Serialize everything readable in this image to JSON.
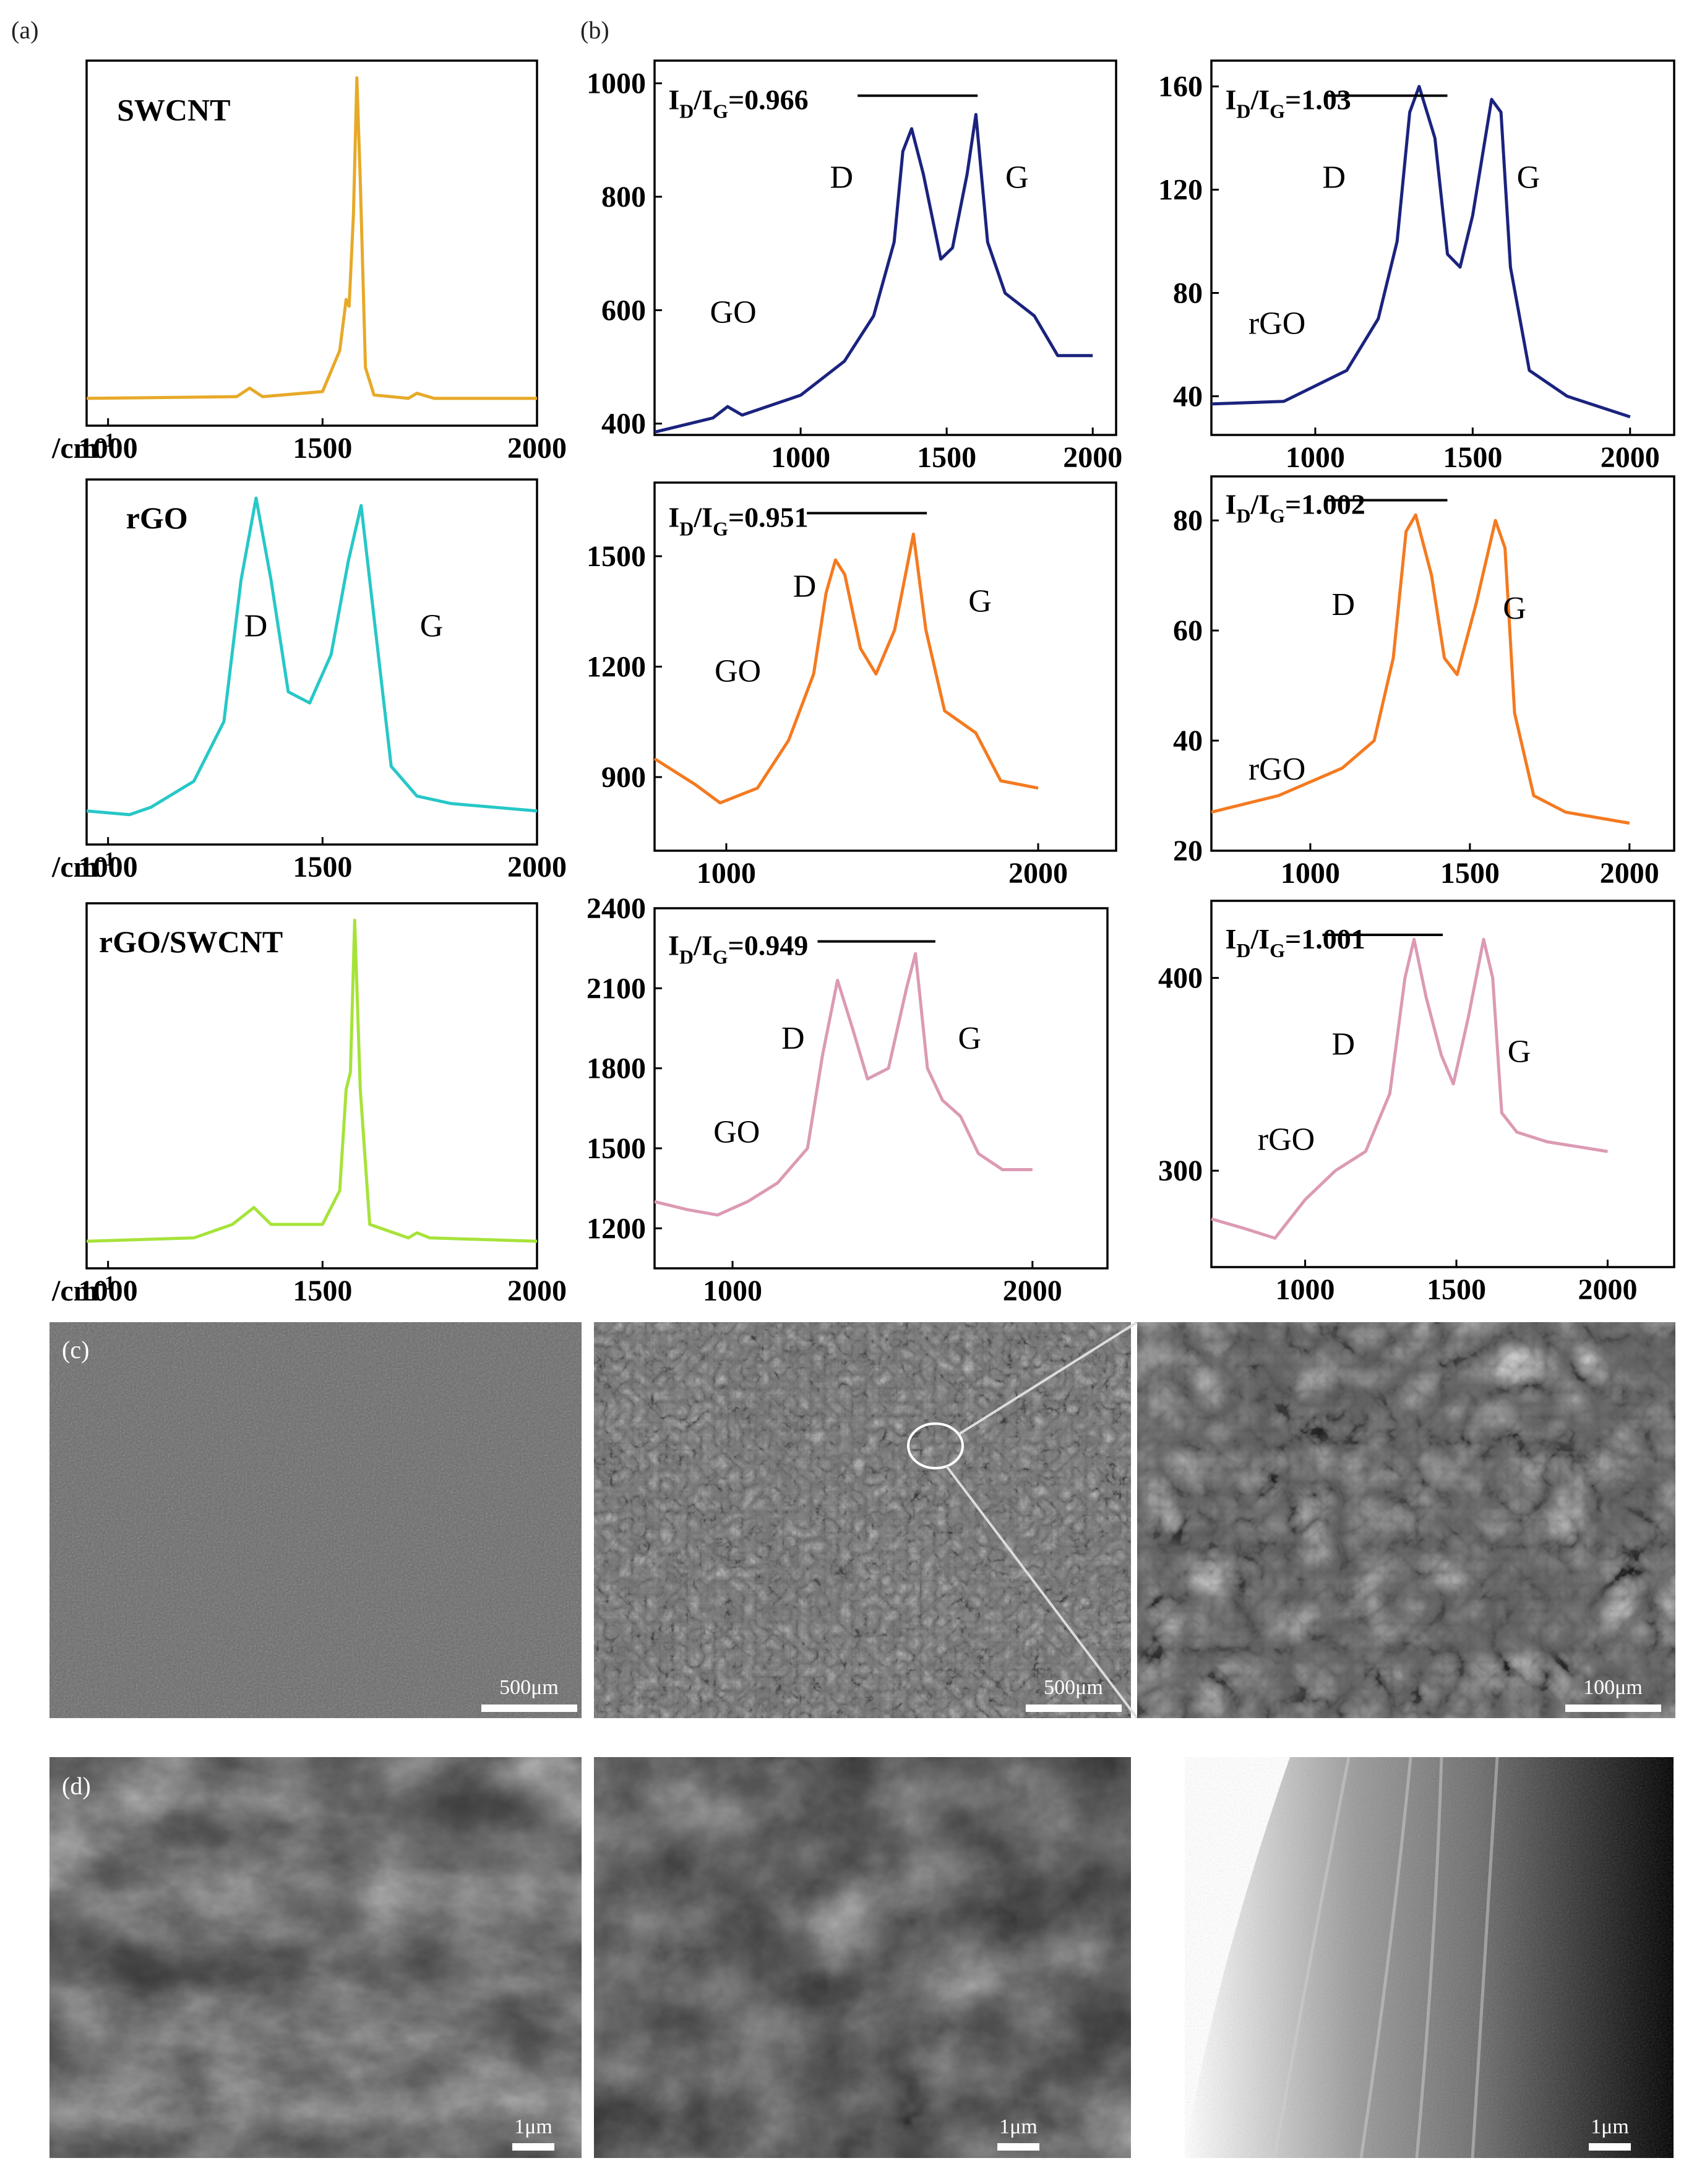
{
  "panel_labels": {
    "a": "(a)",
    "b": "(b)",
    "c": "(c)",
    "d": "(d)"
  },
  "axis_unit_label": "/cm",
  "axis_unit_sup": "-1",
  "colors": {
    "swcnt": "#e7a928",
    "rgo": "#27c7c7",
    "composite": "#a6e33a",
    "navy": "#1b237e",
    "orange": "#f47a20",
    "pink": "#dc9ab4"
  },
  "chart_data": [
    {
      "id": "a1",
      "type": "line",
      "title": "SWCNT",
      "xlim": [
        950,
        2000
      ],
      "x_ticks": [
        1000,
        1500,
        2000
      ],
      "y_ticks": [],
      "series": [
        {
          "color": "#e7a928",
          "points": [
            [
              950,
              0.06
            ],
            [
              1300,
              0.065
            ],
            [
              1330,
              0.09
            ],
            [
              1360,
              0.065
            ],
            [
              1500,
              0.08
            ],
            [
              1540,
              0.2
            ],
            [
              1555,
              0.35
            ],
            [
              1562,
              0.33
            ],
            [
              1572,
              0.6
            ],
            [
              1580,
              1.0
            ],
            [
              1588,
              0.7
            ],
            [
              1600,
              0.15
            ],
            [
              1620,
              0.07
            ],
            [
              1700,
              0.06
            ],
            [
              1720,
              0.075
            ],
            [
              1760,
              0.06
            ],
            [
              2000,
              0.06
            ]
          ]
        }
      ],
      "annotations": []
    },
    {
      "id": "b1",
      "type": "line",
      "title": "I_D/I_G=0.966",
      "xlim": [
        500,
        2080
      ],
      "ylim": [
        380,
        1040
      ],
      "x_ticks": [
        1000,
        1500,
        2000
      ],
      "y_ticks": [
        400,
        600,
        800,
        1000
      ],
      "series": [
        {
          "color": "#1b237e",
          "points": [
            [
              500,
              385
            ],
            [
              700,
              410
            ],
            [
              750,
              430
            ],
            [
              800,
              415
            ],
            [
              1000,
              450
            ],
            [
              1150,
              510
            ],
            [
              1250,
              590
            ],
            [
              1320,
              720
            ],
            [
              1350,
              880
            ],
            [
              1380,
              920
            ],
            [
              1420,
              840
            ],
            [
              1480,
              690
            ],
            [
              1520,
              710
            ],
            [
              1570,
              840
            ],
            [
              1600,
              945
            ],
            [
              1640,
              720
            ],
            [
              1700,
              630
            ],
            [
              1800,
              590
            ],
            [
              1880,
              520
            ],
            [
              2000,
              520
            ]
          ]
        }
      ],
      "annotations": [
        "D",
        "G",
        "GO"
      ]
    },
    {
      "id": "b2",
      "type": "line",
      "title": "I_D/I_G=1.03",
      "xlim": [
        670,
        2140
      ],
      "ylim": [
        25,
        170
      ],
      "x_ticks": [
        1000,
        1500,
        2000
      ],
      "y_ticks": [
        40,
        80,
        120,
        160
      ],
      "series": [
        {
          "color": "#1b237e",
          "points": [
            [
              670,
              37
            ],
            [
              900,
              38
            ],
            [
              1100,
              50
            ],
            [
              1200,
              70
            ],
            [
              1260,
              100
            ],
            [
              1300,
              150
            ],
            [
              1330,
              160
            ],
            [
              1380,
              140
            ],
            [
              1420,
              95
            ],
            [
              1460,
              90
            ],
            [
              1500,
              110
            ],
            [
              1560,
              155
            ],
            [
              1590,
              150
            ],
            [
              1620,
              90
            ],
            [
              1680,
              50
            ],
            [
              1800,
              40
            ],
            [
              2000,
              32
            ]
          ]
        }
      ],
      "annotations": [
        "D",
        "G",
        "rGO"
      ]
    },
    {
      "id": "a2",
      "type": "line",
      "title": "rGO",
      "xlim": [
        950,
        2000
      ],
      "x_ticks": [
        1000,
        1500,
        2000
      ],
      "y_ticks": [],
      "series": [
        {
          "color": "#27c7c7",
          "points": [
            [
              950,
              0.08
            ],
            [
              1050,
              0.07
            ],
            [
              1100,
              0.09
            ],
            [
              1200,
              0.16
            ],
            [
              1270,
              0.32
            ],
            [
              1310,
              0.7
            ],
            [
              1345,
              0.92
            ],
            [
              1380,
              0.7
            ],
            [
              1420,
              0.4
            ],
            [
              1470,
              0.37
            ],
            [
              1520,
              0.5
            ],
            [
              1560,
              0.75
            ],
            [
              1590,
              0.9
            ],
            [
              1620,
              0.6
            ],
            [
              1660,
              0.2
            ],
            [
              1720,
              0.12
            ],
            [
              1800,
              0.1
            ],
            [
              2000,
              0.08
            ]
          ]
        }
      ],
      "annotations": [
        "D",
        "G"
      ]
    },
    {
      "id": "b3",
      "type": "line",
      "title": "I_D/I_G=0.951",
      "xlim": [
        770,
        2250
      ],
      "ylim": [
        700,
        1700
      ],
      "x_ticks": [
        1000,
        2000
      ],
      "y_ticks": [
        900,
        1200,
        1500
      ],
      "series": [
        {
          "color": "#f47a20",
          "points": [
            [
              770,
              950
            ],
            [
              900,
              880
            ],
            [
              980,
              830
            ],
            [
              1100,
              870
            ],
            [
              1200,
              1000
            ],
            [
              1280,
              1180
            ],
            [
              1320,
              1400
            ],
            [
              1350,
              1490
            ],
            [
              1380,
              1450
            ],
            [
              1430,
              1250
            ],
            [
              1480,
              1180
            ],
            [
              1540,
              1300
            ],
            [
              1600,
              1560
            ],
            [
              1640,
              1300
            ],
            [
              1700,
              1080
            ],
            [
              1800,
              1020
            ],
            [
              1880,
              890
            ],
            [
              2000,
              870
            ]
          ]
        }
      ],
      "annotations": [
        "D",
        "G",
        "GO"
      ]
    },
    {
      "id": "b4",
      "type": "line",
      "title": "I_D/I_G=1.002",
      "xlim": [
        690,
        2140
      ],
      "ylim": [
        20,
        88
      ],
      "x_ticks": [
        1000,
        1500,
        2000
      ],
      "y_ticks": [
        20,
        40,
        60,
        80
      ],
      "series": [
        {
          "color": "#f47a20",
          "points": [
            [
              690,
              27
            ],
            [
              900,
              30
            ],
            [
              1100,
              35
            ],
            [
              1200,
              40
            ],
            [
              1260,
              55
            ],
            [
              1300,
              78
            ],
            [
              1330,
              81
            ],
            [
              1380,
              70
            ],
            [
              1420,
              55
            ],
            [
              1460,
              52
            ],
            [
              1520,
              65
            ],
            [
              1580,
              80
            ],
            [
              1610,
              75
            ],
            [
              1640,
              45
            ],
            [
              1700,
              30
            ],
            [
              1800,
              27
            ],
            [
              2000,
              25
            ]
          ]
        }
      ],
      "annotations": [
        "D",
        "G",
        "rGO"
      ]
    },
    {
      "id": "a3",
      "type": "line",
      "title": "rGO/SWCNT",
      "xlim": [
        950,
        2000
      ],
      "x_ticks": [
        1000,
        1500,
        2000
      ],
      "y_ticks": [],
      "series": [
        {
          "color": "#a6e33a",
          "points": [
            [
              950,
              0.05
            ],
            [
              1200,
              0.06
            ],
            [
              1290,
              0.1
            ],
            [
              1340,
              0.15
            ],
            [
              1380,
              0.1
            ],
            [
              1500,
              0.1
            ],
            [
              1540,
              0.2
            ],
            [
              1555,
              0.5
            ],
            [
              1565,
              0.55
            ],
            [
              1575,
              1.0
            ],
            [
              1588,
              0.5
            ],
            [
              1610,
              0.1
            ],
            [
              1700,
              0.06
            ],
            [
              1720,
              0.075
            ],
            [
              1750,
              0.06
            ],
            [
              2000,
              0.05
            ]
          ]
        }
      ],
      "annotations": [
        "D",
        "G"
      ]
    },
    {
      "id": "b5",
      "type": "line",
      "title": "I_D/I_G=0.949",
      "xlim": [
        740,
        2250
      ],
      "ylim": [
        1050,
        2400
      ],
      "x_ticks": [
        1000,
        2000
      ],
      "y_ticks": [
        1200,
        1500,
        1800,
        2100,
        2400
      ],
      "series": [
        {
          "color": "#dc9ab4",
          "points": [
            [
              740,
              1300
            ],
            [
              850,
              1270
            ],
            [
              950,
              1250
            ],
            [
              1050,
              1300
            ],
            [
              1150,
              1370
            ],
            [
              1250,
              1500
            ],
            [
              1300,
              1850
            ],
            [
              1350,
              2130
            ],
            [
              1400,
              1950
            ],
            [
              1450,
              1760
            ],
            [
              1520,
              1800
            ],
            [
              1580,
              2100
            ],
            [
              1610,
              2230
            ],
            [
              1650,
              1800
            ],
            [
              1700,
              1680
            ],
            [
              1760,
              1620
            ],
            [
              1820,
              1480
            ],
            [
              1900,
              1420
            ],
            [
              2000,
              1420
            ]
          ]
        }
      ],
      "annotations": [
        "D",
        "G",
        "GO"
      ]
    },
    {
      "id": "b6",
      "type": "line",
      "title": "I_D/I_G=1.001",
      "xlim": [
        690,
        2220
      ],
      "ylim": [
        250,
        440
      ],
      "x_ticks": [
        1000,
        1500,
        2000
      ],
      "y_ticks": [
        300,
        400
      ],
      "series": [
        {
          "color": "#dc9ab4",
          "points": [
            [
              690,
              275
            ],
            [
              800,
              270
            ],
            [
              900,
              265
            ],
            [
              1000,
              285
            ],
            [
              1100,
              300
            ],
            [
              1200,
              310
            ],
            [
              1280,
              340
            ],
            [
              1330,
              400
            ],
            [
              1360,
              420
            ],
            [
              1400,
              390
            ],
            [
              1450,
              360
            ],
            [
              1490,
              345
            ],
            [
              1540,
              380
            ],
            [
              1590,
              420
            ],
            [
              1620,
              400
            ],
            [
              1650,
              330
            ],
            [
              1700,
              320
            ],
            [
              1800,
              315
            ],
            [
              2000,
              310
            ]
          ]
        }
      ],
      "annotations": [
        "D",
        "G",
        "rGO"
      ]
    }
  ],
  "sem_scale_bars": [
    "500μm",
    "500μm",
    "100μm",
    "1μm",
    "1μm",
    "1μm"
  ]
}
